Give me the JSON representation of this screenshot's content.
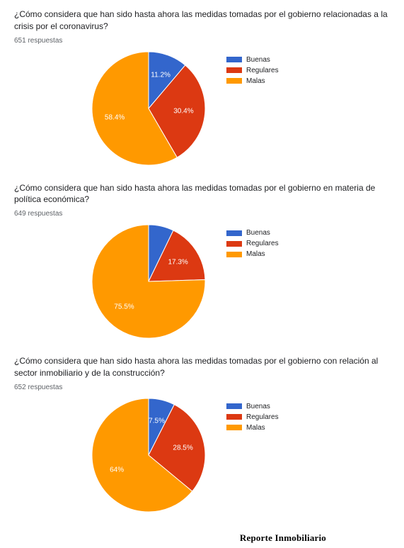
{
  "legend_labels": [
    "Buenas",
    "Regulares",
    "Malas"
  ],
  "colors": {
    "buenas": "#3366cc",
    "regulares": "#dc3912",
    "malas": "#ff9900",
    "label_text": "#ffffff",
    "question_text": "#202124",
    "responses_text": "#5f6368",
    "background": "#ffffff"
  },
  "typography": {
    "question_fontsize": 12,
    "responses_fontsize": 10,
    "legend_fontsize": 10,
    "slice_label_fontsize": 10
  },
  "pie_layout": {
    "radius": 80,
    "start_angle_deg": 0,
    "direction": "clockwise",
    "order": [
      "buenas",
      "regulares",
      "malas"
    ]
  },
  "charts": [
    {
      "question": "¿Cómo considera que han sido hasta ahora las medidas tomadas por el gobierno relacionadas a la crisis por el coronavirus?",
      "responses": "651 respuestas",
      "slices": [
        {
          "key": "buenas",
          "value": 11.2,
          "label": "11.2%",
          "color": "#3366cc"
        },
        {
          "key": "regulares",
          "value": 30.4,
          "label": "30.4%",
          "color": "#dc3912"
        },
        {
          "key": "malas",
          "value": 58.4,
          "label": "58.4%",
          "color": "#ff9900"
        }
      ]
    },
    {
      "question": "¿Cómo considera que han sido hasta ahora las medidas tomadas por el gobierno en materia de política económica?",
      "responses": "649 respuestas",
      "slices": [
        {
          "key": "buenas",
          "value": 7.2,
          "label": "",
          "color": "#3366cc"
        },
        {
          "key": "regulares",
          "value": 17.3,
          "label": "17.3%",
          "color": "#dc3912"
        },
        {
          "key": "malas",
          "value": 75.5,
          "label": "75.5%",
          "color": "#ff9900"
        }
      ]
    },
    {
      "question": "¿Cómo considera que han sido hasta ahora las medidas tomadas por el gobierno con relación al sector inmobiliario y de la construcción?",
      "responses": "652 respuestas",
      "slices": [
        {
          "key": "buenas",
          "value": 7.5,
          "label": "7.5%",
          "color": "#3366cc"
        },
        {
          "key": "regulares",
          "value": 28.5,
          "label": "28.5%",
          "color": "#dc3912"
        },
        {
          "key": "malas",
          "value": 64.0,
          "label": "64%",
          "color": "#ff9900"
        }
      ]
    }
  ],
  "footer": "Reporte Inmobiliario"
}
